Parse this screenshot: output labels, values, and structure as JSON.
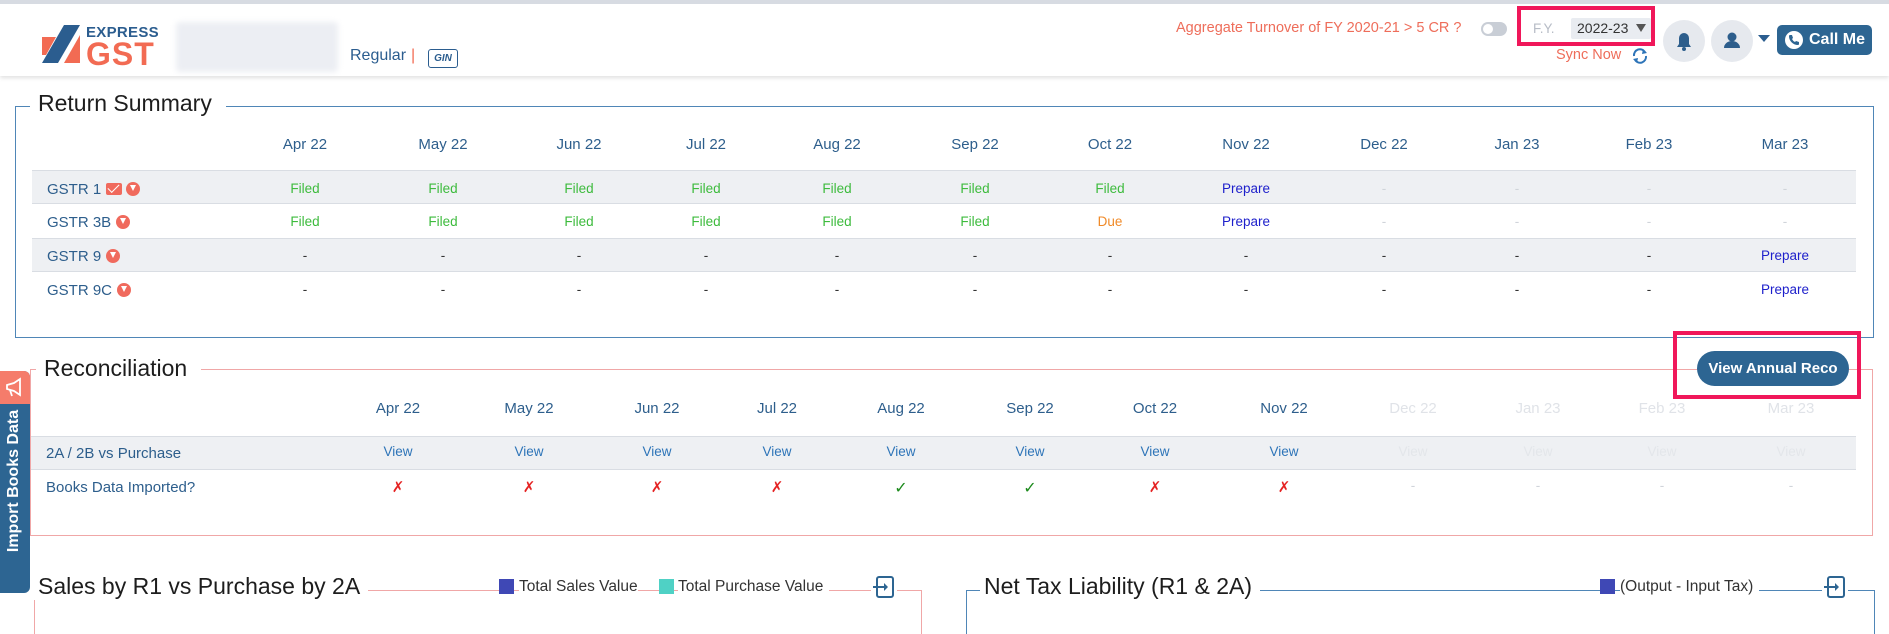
{
  "header": {
    "logo_express": "EXPRESS",
    "logo_gst": "GST",
    "taxpayer_type": "Regular",
    "separator": "|",
    "gstin_badge": "GIN",
    "aggregate_question": "Aggregate Turnover of FY 2020-21 > 5 CR ?",
    "fy_label": "F.Y.",
    "fy_value": "2022-23",
    "sync_label": "Sync Now",
    "call_label": "Call Me"
  },
  "return_summary": {
    "title": "Return Summary",
    "months": [
      "Apr 22",
      "May 22",
      "Jun 22",
      "Jul 22",
      "Aug 22",
      "Sep 22",
      "Oct 22",
      "Nov 22",
      "Dec 22",
      "Jan 23",
      "Feb 23",
      "Mar 23"
    ],
    "rows": [
      {
        "label": "GSTR 1",
        "statuses": [
          "Filed",
          "Filed",
          "Filed",
          "Filed",
          "Filed",
          "Filed",
          "Filed",
          "Prepare",
          "-",
          "-",
          "-",
          "-"
        ]
      },
      {
        "label": "GSTR 3B",
        "statuses": [
          "Filed",
          "Filed",
          "Filed",
          "Filed",
          "Filed",
          "Filed",
          "Due",
          "Prepare",
          "-",
          "-",
          "-",
          "-"
        ]
      },
      {
        "label": "GSTR 9",
        "statuses": [
          "-",
          "-",
          "-",
          "-",
          "-",
          "-",
          "-",
          "-",
          "-",
          "-",
          "-",
          "Prepare"
        ]
      },
      {
        "label": "GSTR 9C",
        "statuses": [
          "-",
          "-",
          "-",
          "-",
          "-",
          "-",
          "-",
          "-",
          "-",
          "-",
          "-",
          "Prepare"
        ]
      }
    ]
  },
  "reconciliation": {
    "title": "Reconciliation",
    "annual_button": "View Annual Reco",
    "months": [
      "Apr 22",
      "May 22",
      "Jun 22",
      "Jul 22",
      "Aug 22",
      "Sep 22",
      "Oct 22",
      "Nov 22",
      "Dec 22",
      "Jan 23",
      "Feb 23",
      "Mar 23"
    ],
    "rows": [
      {
        "label": "2A / 2B vs Purchase",
        "values": [
          "View",
          "View",
          "View",
          "View",
          "View",
          "View",
          "View",
          "View",
          "View",
          "View",
          "View",
          "View"
        ]
      },
      {
        "label": "Books Data Imported?",
        "values": [
          "✗",
          "✗",
          "✗",
          "✗",
          "✓",
          "✓",
          "✗",
          "✗",
          "-",
          "-",
          "-",
          "-"
        ]
      }
    ]
  },
  "side_tab": {
    "label": "Import Books Data"
  },
  "sales_panel": {
    "title": "Sales by R1 vs Purchase by 2A",
    "legend": [
      {
        "label": "Total Sales Value",
        "color": "#3f48b5"
      },
      {
        "label": "Total Purchase Value",
        "color": "#4fd1c5"
      }
    ]
  },
  "tax_panel": {
    "title": "Net Tax Liability (R1 & 2A)",
    "legend": [
      {
        "label": "(Output - Input Tax)",
        "color": "#3f48b5"
      }
    ]
  }
}
